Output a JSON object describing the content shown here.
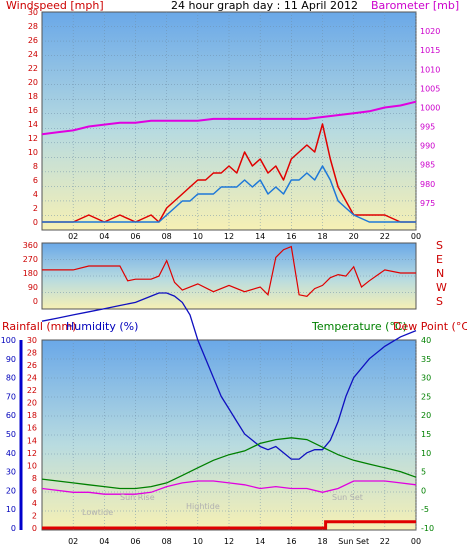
{
  "chart_data": [
    {
      "type": "line",
      "title": "24 hour graph day : 11 April 2012",
      "left_axis_label": "Windspeed [mph]",
      "right_axis_label": "Barometer [mb]",
      "left_ylim": [
        0,
        30
      ],
      "left_ticks": [
        "0",
        "2",
        "4",
        "6",
        "8",
        "10",
        "12",
        "14",
        "16",
        "18",
        "20",
        "22",
        "24",
        "26",
        "28",
        "30"
      ],
      "right_ylim": [
        970,
        1025
      ],
      "right_ticks": [
        "975",
        "980",
        "985",
        "990",
        "995",
        "1000",
        "1005",
        "1010",
        "1015",
        "1020"
      ],
      "x_ticks": [
        "02",
        "04",
        "06",
        "08",
        "10",
        "12",
        "14",
        "16",
        "18",
        "20",
        "22",
        "00"
      ],
      "grid": true,
      "series": [
        {
          "name": "",
          "color": "#e00000",
          "x": [
            0,
            1,
            2,
            3,
            4,
            5,
            6,
            7,
            7.5,
            8,
            8.5,
            9,
            9.5,
            10,
            10.5,
            11,
            11.5,
            12,
            12.5,
            13,
            13.5,
            14,
            14.5,
            15,
            15.5,
            16,
            16.5,
            17,
            17.5,
            18,
            18.5,
            19,
            19.5,
            20,
            21,
            22,
            23,
            24
          ],
          "y": [
            0,
            0,
            0,
            1,
            0,
            1,
            0,
            1,
            0,
            2,
            3,
            4,
            5,
            6,
            6,
            7,
            7,
            8,
            7,
            10,
            8,
            9,
            7,
            8,
            6,
            9,
            10,
            11,
            10,
            14,
            9,
            5,
            3,
            1,
            1,
            1,
            0,
            0
          ]
        },
        {
          "name": "",
          "color": "#1e78d8",
          "x": [
            0,
            1,
            2,
            3,
            4,
            5,
            6,
            7,
            7.5,
            8,
            8.5,
            9,
            9.5,
            10,
            10.5,
            11,
            11.5,
            12,
            12.5,
            13,
            13.5,
            14,
            14.5,
            15,
            15.5,
            16,
            16.5,
            17,
            17.5,
            18,
            18.5,
            19,
            19.5,
            20,
            21,
            22,
            23,
            24
          ],
          "y": [
            0,
            0,
            0,
            0,
            0,
            0,
            0,
            0,
            0,
            1,
            2,
            3,
            3,
            4,
            4,
            4,
            5,
            5,
            5,
            6,
            5,
            6,
            4,
            5,
            4,
            6,
            6,
            7,
            6,
            8,
            6,
            3,
            2,
            1,
            0,
            0,
            0,
            0
          ]
        },
        {
          "name": "",
          "color": "#e000e0",
          "x": [
            0,
            1,
            2,
            3,
            4,
            5,
            6,
            7,
            8,
            9,
            10,
            11,
            12,
            13,
            14,
            15,
            16,
            17,
            18,
            19,
            20,
            21,
            22,
            23,
            24
          ],
          "y": [
            993,
            993.5,
            994,
            995,
            995.5,
            996,
            996,
            996.5,
            996.5,
            996.5,
            996.5,
            997,
            997,
            997,
            997,
            997,
            997,
            997,
            997.5,
            998,
            998.5,
            999,
            1000,
            1000.5,
            1001.5
          ]
        }
      ]
    },
    {
      "type": "line",
      "left_ticks": [
        "0",
        "90",
        "180",
        "270",
        "360"
      ],
      "right_labels": [
        "S",
        "E",
        "N",
        "W",
        "S"
      ],
      "ylim": [
        0,
        360
      ],
      "x_ticks": [
        "02",
        "04",
        "06",
        "08",
        "10",
        "12",
        "14",
        "16",
        "18",
        "20",
        "22",
        "00"
      ],
      "series": [
        {
          "name": "",
          "color": "#e00000",
          "x": [
            0,
            1,
            2,
            3,
            4,
            5,
            5.5,
            6,
            7,
            7.5,
            8,
            8.5,
            9,
            10,
            11,
            12,
            13,
            14,
            14.5,
            15,
            15.5,
            16,
            16.5,
            17,
            17.5,
            18,
            18.5,
            19,
            19.5,
            20,
            20.5,
            21,
            22,
            23,
            24
          ],
          "y": [
            200,
            200,
            200,
            225,
            225,
            225,
            130,
            140,
            140,
            160,
            260,
            120,
            70,
            110,
            60,
            100,
            60,
            90,
            40,
            280,
            330,
            350,
            40,
            30,
            80,
            100,
            150,
            170,
            160,
            220,
            90,
            130,
            200,
            180,
            180
          ]
        }
      ]
    },
    {
      "type": "line",
      "left_axis_label": "Rainfall (mm)",
      "left2_axis_label": "Humidity (%)",
      "right_axis_label": "Temperature (°C)",
      "right2_axis_label": "Dew Point (°C)",
      "rain_ticks": [
        "0",
        "2",
        "4",
        "6",
        "8",
        "10",
        "12",
        "14",
        "16",
        "18",
        "20",
        "22",
        "24",
        "26",
        "28",
        "30"
      ],
      "humidity_ticks": [
        "0",
        "10",
        "20",
        "30",
        "40",
        "50",
        "60",
        "70",
        "80",
        "90",
        "100"
      ],
      "temp_ticks": [
        "-10",
        "-5",
        "0",
        "5",
        "10",
        "15",
        "20",
        "25",
        "30",
        "35",
        "40"
      ],
      "temp_ylim": [
        -10,
        40
      ],
      "x_ticks": [
        "02",
        "04",
        "06",
        "08",
        "10",
        "12",
        "14",
        "16",
        "18",
        "Sun Set",
        "22",
        "00"
      ],
      "annotations": [
        "Lowtide",
        "Sun Rise",
        "Hightide",
        "Sun Set"
      ],
      "series": [
        {
          "name": "",
          "color": "#1010c0",
          "x": [
            0,
            1,
            2,
            3,
            4,
            5,
            6,
            7,
            7.5,
            8,
            8.5,
            9,
            9.5,
            10,
            10.5,
            11,
            11.5,
            12,
            12.5,
            13,
            13.5,
            14,
            14.5,
            15,
            15.5,
            16,
            16.5,
            17,
            17.5,
            18,
            18.5,
            19,
            19.5,
            20,
            21,
            22,
            23,
            24
          ],
          "y": [
            33,
            33.5,
            34,
            34.5,
            35,
            35.5,
            36,
            37,
            37.5,
            37.5,
            37,
            36,
            34,
            30,
            27,
            24,
            21,
            19,
            17,
            15,
            14,
            13,
            12.5,
            13,
            12,
            11,
            11,
            12,
            12.5,
            12.5,
            14,
            17,
            21,
            24,
            27,
            29,
            30.5,
            31.5
          ]
        },
        {
          "name": "",
          "color": "#008000",
          "x": [
            0,
            1,
            2,
            3,
            4,
            5,
            6,
            7,
            8,
            9,
            10,
            11,
            12,
            13,
            14,
            15,
            16,
            17,
            18,
            19,
            20,
            21,
            22,
            23,
            24
          ],
          "y": [
            3,
            2.5,
            2,
            1.5,
            1,
            0.5,
            0.5,
            1,
            2,
            4,
            6,
            8,
            9.5,
            10.5,
            12.5,
            13.5,
            14,
            13.5,
            11.5,
            9.5,
            8,
            7,
            6,
            5,
            3.5
          ]
        },
        {
          "name": "",
          "color": "#e000e0",
          "x": [
            0,
            1,
            2,
            3,
            4,
            5,
            6,
            7,
            8,
            9,
            10,
            11,
            12,
            13,
            14,
            15,
            16,
            17,
            18,
            19,
            20,
            21,
            22,
            23,
            24
          ],
          "y": [
            0.5,
            0,
            -0.5,
            -0.5,
            -1,
            -1,
            -1,
            -0.5,
            1,
            2,
            2.5,
            2.5,
            2,
            1.5,
            0.5,
            1,
            0.5,
            0.5,
            -0.5,
            0.5,
            2.5,
            2.5,
            2.5,
            2,
            1.5
          ]
        },
        {
          "name": "",
          "color": "#e00000",
          "x": [
            0,
            18.2,
            18.2,
            24
          ],
          "y": [
            0,
            0,
            1,
            1
          ]
        }
      ]
    }
  ]
}
